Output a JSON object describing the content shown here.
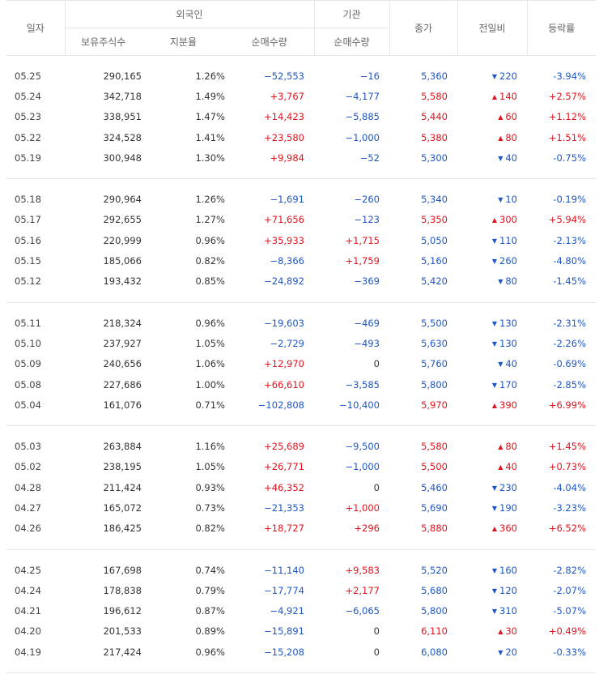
{
  "header": {
    "date": "일자",
    "foreign": "외국인",
    "institution": "기관",
    "close": "종가",
    "change": "전일비",
    "rate": "등락률",
    "holdings": "보유주식수",
    "ratio": "지분율",
    "foreign_net": "순매수량",
    "inst_net": "순매수량"
  },
  "colors": {
    "up": "#e0121c",
    "down": "#1e56c4"
  },
  "groups": [
    [
      {
        "date": "05.25",
        "holdings": "290,165",
        "ratio": "1.26%",
        "foreign_net": "−52,553",
        "inst_net": "−16",
        "close": "5,360",
        "dir": "down",
        "change": "220",
        "rate": "-3.94%"
      },
      {
        "date": "05.24",
        "holdings": "342,718",
        "ratio": "1.49%",
        "foreign_net": "+3,767",
        "inst_net": "−4,177",
        "close": "5,580",
        "dir": "up",
        "change": "140",
        "rate": "+2.57%"
      },
      {
        "date": "05.23",
        "holdings": "338,951",
        "ratio": "1.47%",
        "foreign_net": "+14,423",
        "inst_net": "−5,885",
        "close": "5,440",
        "dir": "up",
        "change": "60",
        "rate": "+1.12%"
      },
      {
        "date": "05.22",
        "holdings": "324,528",
        "ratio": "1.41%",
        "foreign_net": "+23,580",
        "inst_net": "−1,000",
        "close": "5,380",
        "dir": "up",
        "change": "80",
        "rate": "+1.51%"
      },
      {
        "date": "05.19",
        "holdings": "300,948",
        "ratio": "1.30%",
        "foreign_net": "+9,984",
        "inst_net": "−52",
        "close": "5,300",
        "dir": "down",
        "change": "40",
        "rate": "-0.75%"
      }
    ],
    [
      {
        "date": "05.18",
        "holdings": "290,964",
        "ratio": "1.26%",
        "foreign_net": "−1,691",
        "inst_net": "−260",
        "close": "5,340",
        "dir": "down",
        "change": "10",
        "rate": "-0.19%"
      },
      {
        "date": "05.17",
        "holdings": "292,655",
        "ratio": "1.27%",
        "foreign_net": "+71,656",
        "inst_net": "−123",
        "close": "5,350",
        "dir": "up",
        "change": "300",
        "rate": "+5.94%"
      },
      {
        "date": "05.16",
        "holdings": "220,999",
        "ratio": "0.96%",
        "foreign_net": "+35,933",
        "inst_net": "+1,715",
        "close": "5,050",
        "dir": "down",
        "change": "110",
        "rate": "-2.13%"
      },
      {
        "date": "05.15",
        "holdings": "185,066",
        "ratio": "0.82%",
        "foreign_net": "−8,366",
        "inst_net": "+1,759",
        "close": "5,160",
        "dir": "down",
        "change": "260",
        "rate": "-4.80%"
      },
      {
        "date": "05.12",
        "holdings": "193,432",
        "ratio": "0.85%",
        "foreign_net": "−24,892",
        "inst_net": "−369",
        "close": "5,420",
        "dir": "down",
        "change": "80",
        "rate": "-1.45%"
      }
    ],
    [
      {
        "date": "05.11",
        "holdings": "218,324",
        "ratio": "0.96%",
        "foreign_net": "−19,603",
        "inst_net": "−469",
        "close": "5,500",
        "dir": "down",
        "change": "130",
        "rate": "-2.31%"
      },
      {
        "date": "05.10",
        "holdings": "237,927",
        "ratio": "1.05%",
        "foreign_net": "−2,729",
        "inst_net": "−493",
        "close": "5,630",
        "dir": "down",
        "change": "130",
        "rate": "-2.26%"
      },
      {
        "date": "05.09",
        "holdings": "240,656",
        "ratio": "1.06%",
        "foreign_net": "+12,970",
        "inst_net": "0",
        "close": "5,760",
        "dir": "down",
        "change": "40",
        "rate": "-0.69%"
      },
      {
        "date": "05.08",
        "holdings": "227,686",
        "ratio": "1.00%",
        "foreign_net": "+66,610",
        "inst_net": "−3,585",
        "close": "5,800",
        "dir": "down",
        "change": "170",
        "rate": "-2.85%"
      },
      {
        "date": "05.04",
        "holdings": "161,076",
        "ratio": "0.71%",
        "foreign_net": "−102,808",
        "inst_net": "−10,400",
        "close": "5,970",
        "dir": "up",
        "change": "390",
        "rate": "+6.99%"
      }
    ],
    [
      {
        "date": "05.03",
        "holdings": "263,884",
        "ratio": "1.16%",
        "foreign_net": "+25,689",
        "inst_net": "−9,500",
        "close": "5,580",
        "dir": "up",
        "change": "80",
        "rate": "+1.45%"
      },
      {
        "date": "05.02",
        "holdings": "238,195",
        "ratio": "1.05%",
        "foreign_net": "+26,771",
        "inst_net": "−1,000",
        "close": "5,500",
        "dir": "up",
        "change": "40",
        "rate": "+0.73%"
      },
      {
        "date": "04.28",
        "holdings": "211,424",
        "ratio": "0.93%",
        "foreign_net": "+46,352",
        "inst_net": "0",
        "close": "5,460",
        "dir": "down",
        "change": "230",
        "rate": "-4.04%"
      },
      {
        "date": "04.27",
        "holdings": "165,072",
        "ratio": "0.73%",
        "foreign_net": "−21,353",
        "inst_net": "+1,000",
        "close": "5,690",
        "dir": "down",
        "change": "190",
        "rate": "-3.23%"
      },
      {
        "date": "04.26",
        "holdings": "186,425",
        "ratio": "0.82%",
        "foreign_net": "+18,727",
        "inst_net": "+296",
        "close": "5,880",
        "dir": "up",
        "change": "360",
        "rate": "+6.52%"
      }
    ],
    [
      {
        "date": "04.25",
        "holdings": "167,698",
        "ratio": "0.74%",
        "foreign_net": "−11,140",
        "inst_net": "+9,583",
        "close": "5,520",
        "dir": "down",
        "change": "160",
        "rate": "-2.82%"
      },
      {
        "date": "04.24",
        "holdings": "178,838",
        "ratio": "0.79%",
        "foreign_net": "−17,774",
        "inst_net": "+2,177",
        "close": "5,680",
        "dir": "down",
        "change": "120",
        "rate": "-2.07%"
      },
      {
        "date": "04.21",
        "holdings": "196,612",
        "ratio": "0.87%",
        "foreign_net": "−4,921",
        "inst_net": "−6,065",
        "close": "5,800",
        "dir": "down",
        "change": "310",
        "rate": "-5.07%"
      },
      {
        "date": "04.20",
        "holdings": "201,533",
        "ratio": "0.89%",
        "foreign_net": "−15,891",
        "inst_net": "0",
        "close": "6,110",
        "dir": "up",
        "change": "30",
        "rate": "+0.49%"
      },
      {
        "date": "04.19",
        "holdings": "217,424",
        "ratio": "0.96%",
        "foreign_net": "−15,208",
        "inst_net": "0",
        "close": "6,080",
        "dir": "down",
        "change": "20",
        "rate": "-0.33%"
      }
    ]
  ]
}
